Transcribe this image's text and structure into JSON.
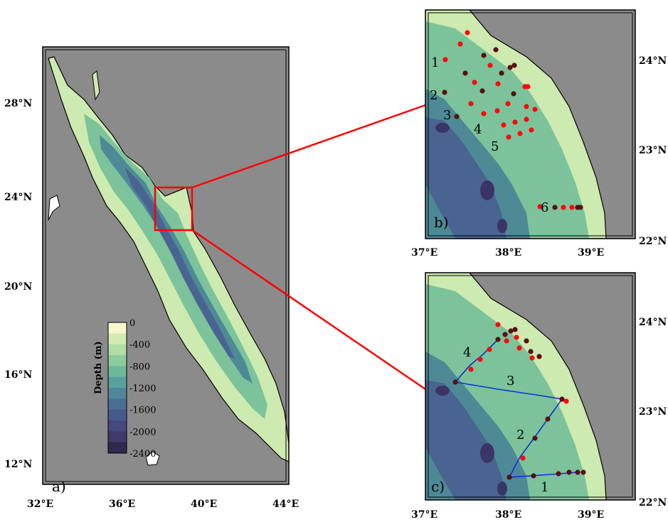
{
  "panels": {
    "a": {
      "label": "a)",
      "x_ticks": [
        "32°E",
        "36°E",
        "40°E",
        "44°E"
      ],
      "y_ticks": [
        "12°N",
        "16°N",
        "20°N",
        "24°N",
        "28°N"
      ]
    },
    "b": {
      "label": "b)",
      "x_ticks": [
        "37°E",
        "38°E",
        "39°E"
      ],
      "y_ticks": [
        "22°N",
        "23°N",
        "24°N"
      ],
      "transect_numbers": [
        "1",
        "2",
        "3",
        "4",
        "5",
        "6"
      ]
    },
    "c": {
      "label": "c)",
      "x_ticks": [
        "37°E",
        "38°E",
        "39°E"
      ],
      "y_ticks": [
        "22°N",
        "23°N",
        "24°N"
      ],
      "leg_numbers": [
        "1",
        "2",
        "3",
        "4"
      ]
    }
  },
  "colorbar": {
    "title": "Depth (m)",
    "ticks": [
      "0",
      "-400",
      "-800",
      "-1200",
      "-1600",
      "-2000",
      "-2400"
    ],
    "colors": [
      "#f7f7cf",
      "#d4ecb2",
      "#b0dea4",
      "#8ccc9a",
      "#6db79a",
      "#58a09c",
      "#4f8798",
      "#4a6f94",
      "#47598b",
      "#45477d",
      "#3f3a6a",
      "#2f2a4e"
    ]
  },
  "colors": {
    "land": "#8b8b8b",
    "inset_box": "#ff0000",
    "station_red": "#ff0a0a",
    "station_dark": "#5a1010",
    "track": "#1030d0",
    "shallow": "#cdeab0",
    "mid": "#7cc39b",
    "deep": "#4e8a96",
    "deeper": "#4a6491",
    "deepest": "#3a3566"
  }
}
